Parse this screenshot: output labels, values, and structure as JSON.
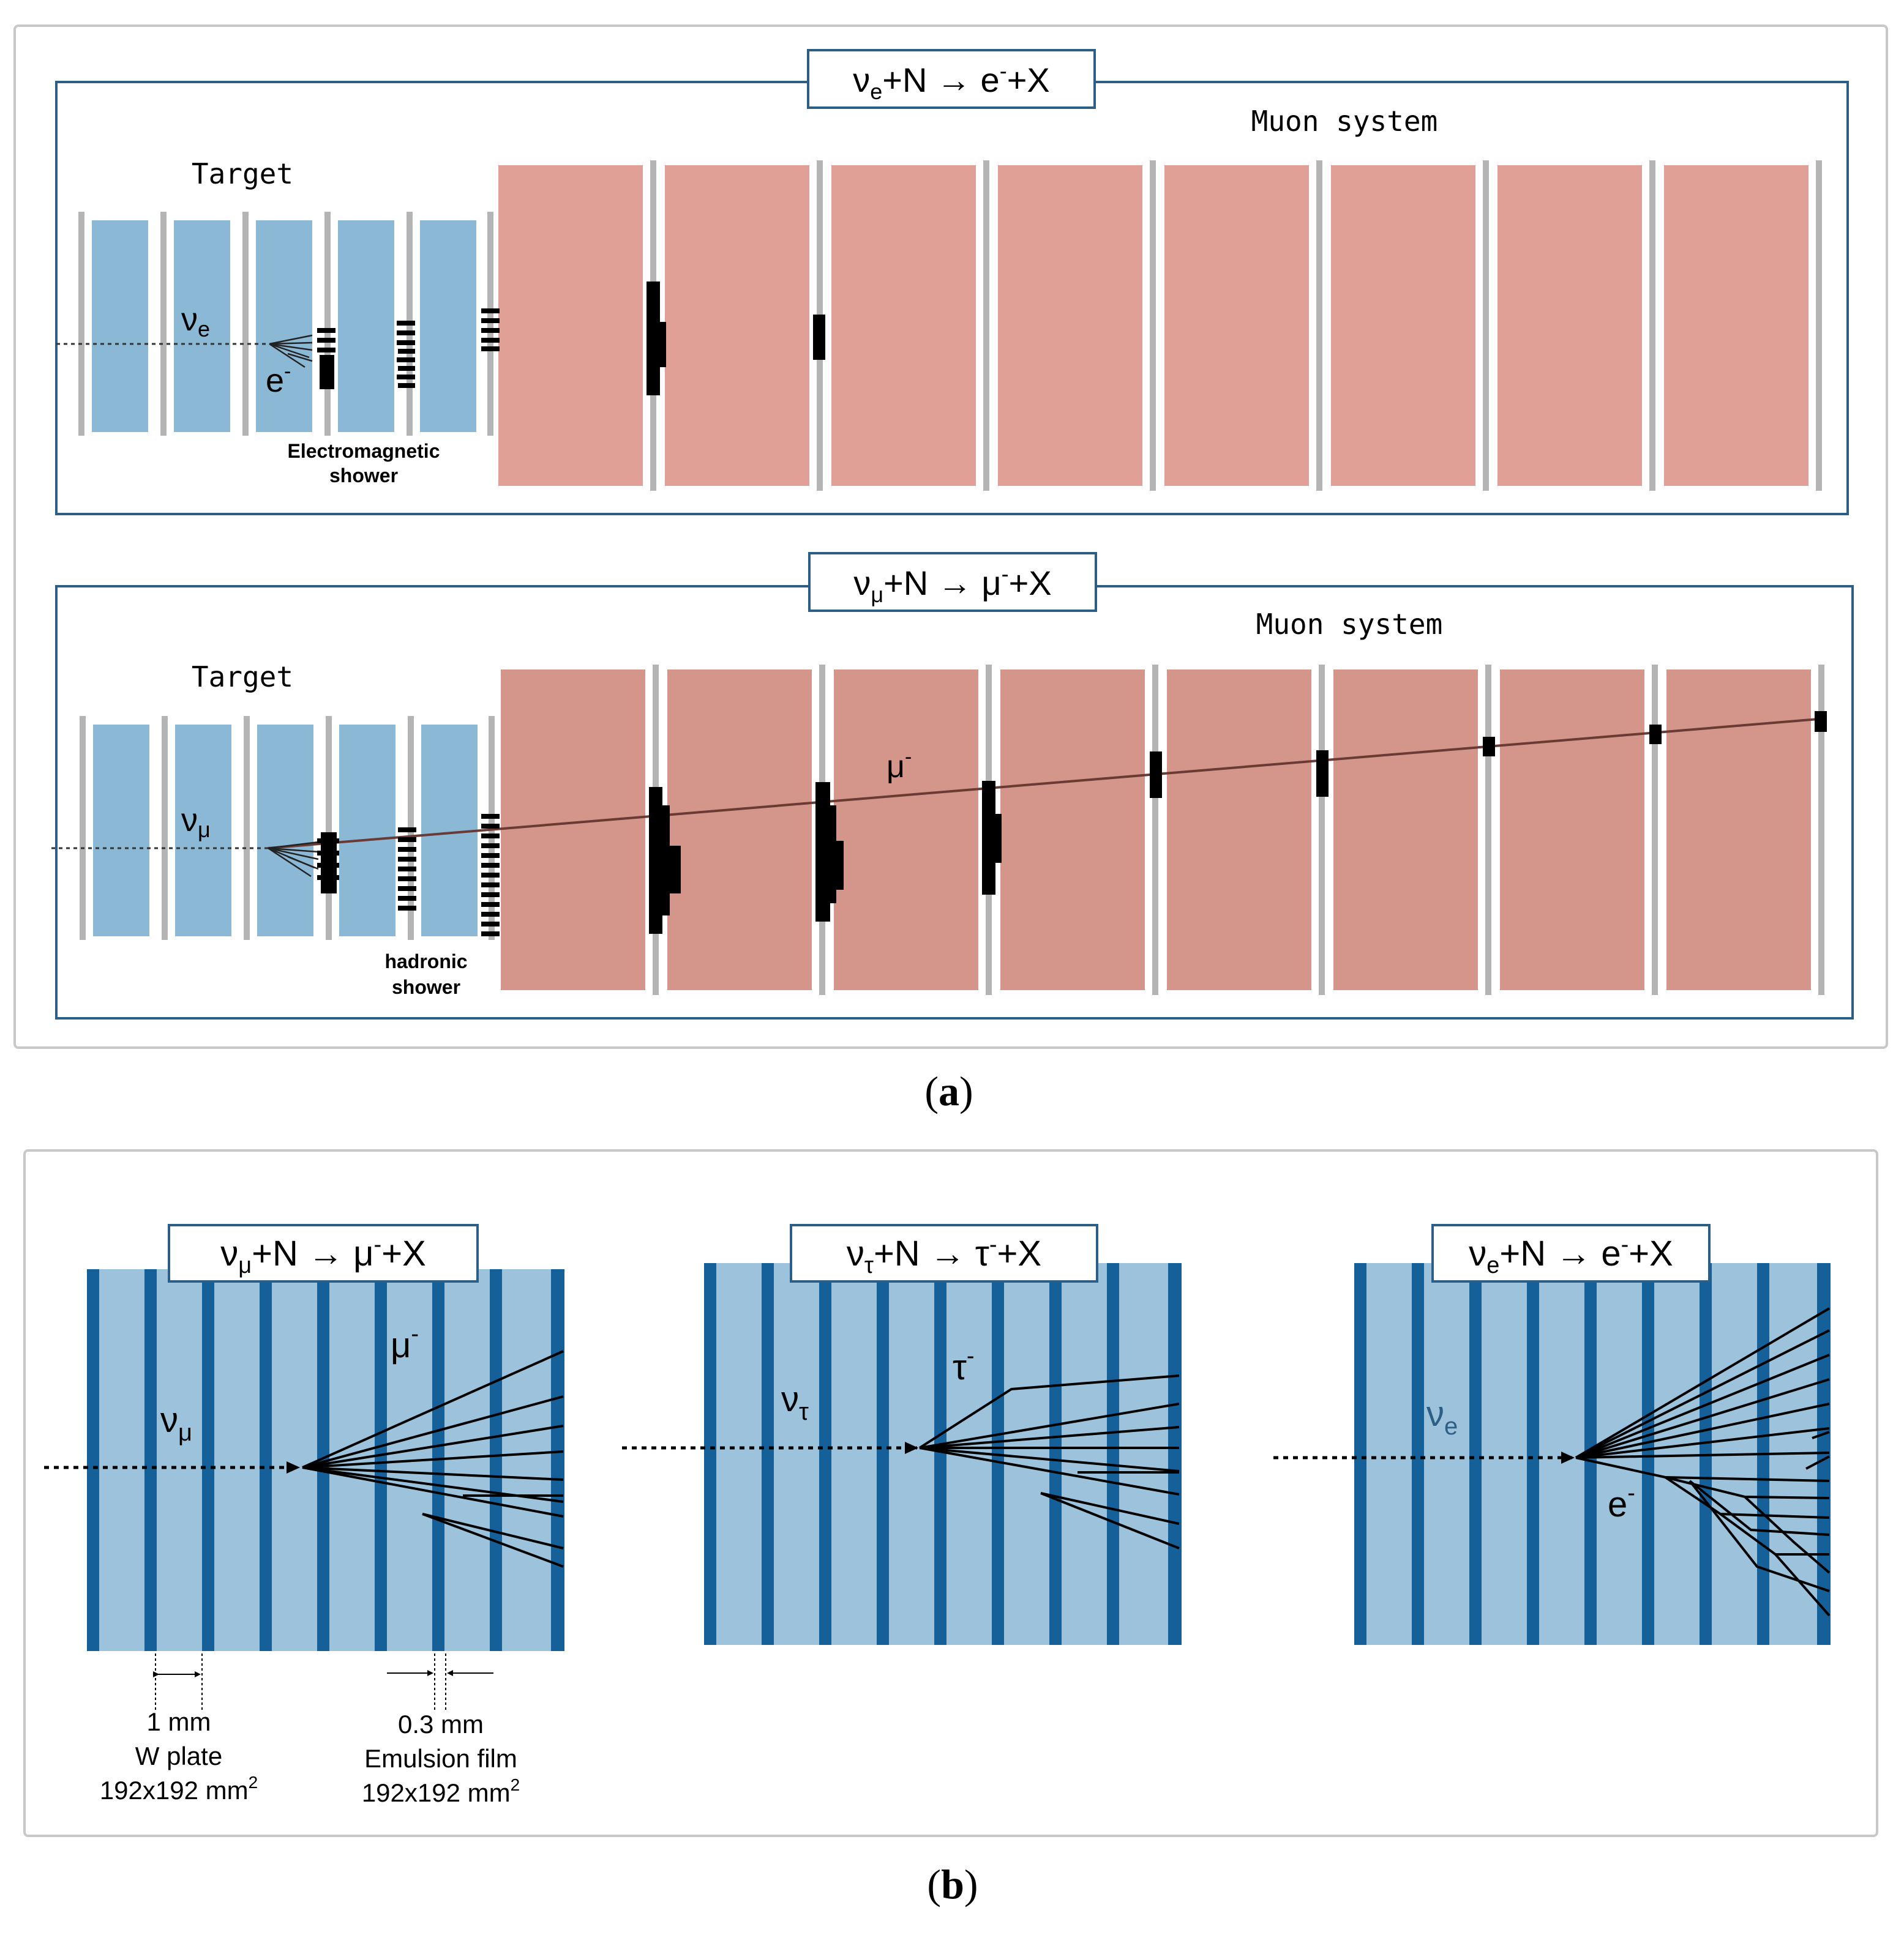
{
  "panel_a": {
    "caption": "(a)",
    "top": {
      "title": {
        "nu": "ν",
        "sub": "e",
        "mid": "+N → e",
        "sup": "-",
        "end": "+X"
      },
      "muon_label": "Muon system",
      "target_label": "Target",
      "neutrino": {
        "nu": "ν",
        "sub": "e"
      },
      "lepton": {
        "base": "e",
        "sup": "-"
      },
      "shower_label": [
        "Electromagnetic",
        "shower"
      ]
    },
    "bottom": {
      "title": {
        "nu": "ν",
        "sub": "μ",
        "mid": "+N → μ",
        "sup": "-",
        "end": "+X"
      },
      "muon_label": "Muon system",
      "target_label": "Target",
      "neutrino": {
        "nu": "ν",
        "sub": "μ"
      },
      "lepton": {
        "base": "μ",
        "sup": "-"
      },
      "shower_label": [
        "hadronic",
        "shower"
      ]
    }
  },
  "panel_b": {
    "caption": "(b)",
    "left": {
      "title": {
        "nu": "ν",
        "sub": "μ",
        "mid": "+N → μ",
        "sup": "-",
        "end": "+X"
      },
      "neutrino": {
        "nu": "ν",
        "sub": "μ"
      },
      "lepton": {
        "base": "μ",
        "sup": "-"
      }
    },
    "middle": {
      "title": {
        "nu": "ν",
        "sub": "τ",
        "mid": "+N → τ",
        "sup": "-",
        "end": "+X"
      },
      "neutrino": {
        "nu": "ν",
        "sub": "τ"
      },
      "lepton": {
        "base": "τ",
        "sup": "-"
      }
    },
    "right": {
      "title": {
        "nu": "ν",
        "sub": "e",
        "mid": "+N → e",
        "sup": "-",
        "end": "+X"
      },
      "neutrino": {
        "nu": "ν",
        "sub": "e"
      },
      "lepton": {
        "base": "e",
        "sup": "-"
      }
    },
    "dimensions": {
      "w_plate": {
        "size": "1 mm",
        "name": "W plate",
        "area": "192x192 mm",
        "sup": "2"
      },
      "emulsion": {
        "size": "0.3 mm",
        "name": "Emulsion film",
        "area": "192x192 mm",
        "sup": "2"
      }
    }
  },
  "colors": {
    "target_blue": "#8bb8d4",
    "muon_red": "#e0a096",
    "muon_red_dark": "#d4968a",
    "emulsion_dark": "#16609a",
    "plate_light": "#9cc2dc",
    "frame_blue": "#2d5f86"
  }
}
